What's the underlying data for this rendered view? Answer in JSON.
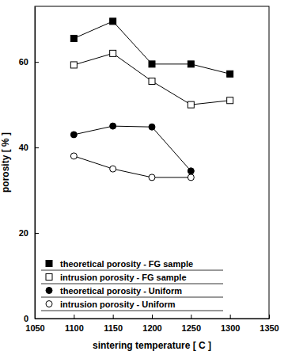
{
  "chart_data": {
    "type": "line",
    "x_label": "sintering temperature [ C ]",
    "y_label": "porosity [ % ]",
    "x": [
      1100,
      1150,
      1200,
      1250,
      1300
    ],
    "series": [
      {
        "name": "theoretical porosity - FG sample",
        "color": "#000000",
        "marker": "square",
        "values": [
          65.5,
          69.5,
          59.5,
          59.5,
          57.2
        ]
      },
      {
        "name": "intrusion porosity - FG sample",
        "color": "#000000",
        "marker": "square-open",
        "values": [
          59.3,
          62,
          55.5,
          50,
          51
        ]
      },
      {
        "name": "theoretical porosity - Uniform",
        "color": "#000000",
        "marker": "circle",
        "values": [
          43,
          45,
          44.8,
          34.5,
          null
        ]
      },
      {
        "name": "intrusion porosity - Uniform",
        "color": "#000000",
        "marker": "circle-open",
        "values": [
          38,
          35,
          33,
          33,
          null
        ]
      }
    ],
    "xlim": [
      1050,
      1350
    ],
    "xticks": [
      1050,
      1100,
      1150,
      1200,
      1250,
      1300,
      1350
    ],
    "ylim": [
      0,
      73
    ],
    "yticks": [
      0,
      20,
      40,
      60
    ],
    "legend": "lower left",
    "grid": false
  }
}
